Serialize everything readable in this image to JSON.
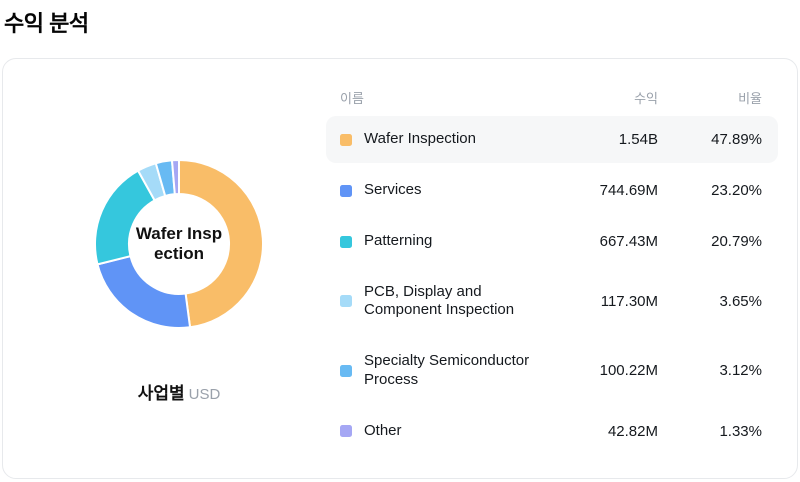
{
  "page_title": "수익 분석",
  "chart_section": {
    "label": "사업별",
    "unit": "USD"
  },
  "table": {
    "headers": {
      "name": "이름",
      "revenue": "수익",
      "ratio": "비율"
    }
  },
  "chart_data": {
    "type": "pie",
    "title": "수익 분석",
    "subtitle": "사업별",
    "unit": "USD",
    "donut": true,
    "start_angle_deg": -90,
    "direction": "clockwise",
    "center_label": "Wafer Inspection",
    "center_label_lines": [
      "Wafer Insp",
      "ection"
    ],
    "highlighted_index": 0,
    "segments": [
      {
        "label": "Wafer Inspection",
        "revenue": "1.54B",
        "ratio": "47.89%",
        "percent": 47.89,
        "color": "#F9BD68"
      },
      {
        "label": "Services",
        "revenue": "744.69M",
        "ratio": "23.20%",
        "percent": 23.2,
        "color": "#6094F6"
      },
      {
        "label": "Patterning",
        "revenue": "667.43M",
        "ratio": "20.79%",
        "percent": 20.79,
        "color": "#35C7DD"
      },
      {
        "label": "PCB, Display and Component Inspection",
        "revenue": "117.30M",
        "ratio": "3.65%",
        "percent": 3.65,
        "color": "#A5DBF8"
      },
      {
        "label": "Specialty Semiconductor Process",
        "revenue": "100.22M",
        "ratio": "3.12%",
        "percent": 3.12,
        "color": "#68BAF3"
      },
      {
        "label": "Other",
        "revenue": "42.82M",
        "ratio": "1.33%",
        "percent": 1.33,
        "color": "#A5A7F4"
      }
    ]
  }
}
